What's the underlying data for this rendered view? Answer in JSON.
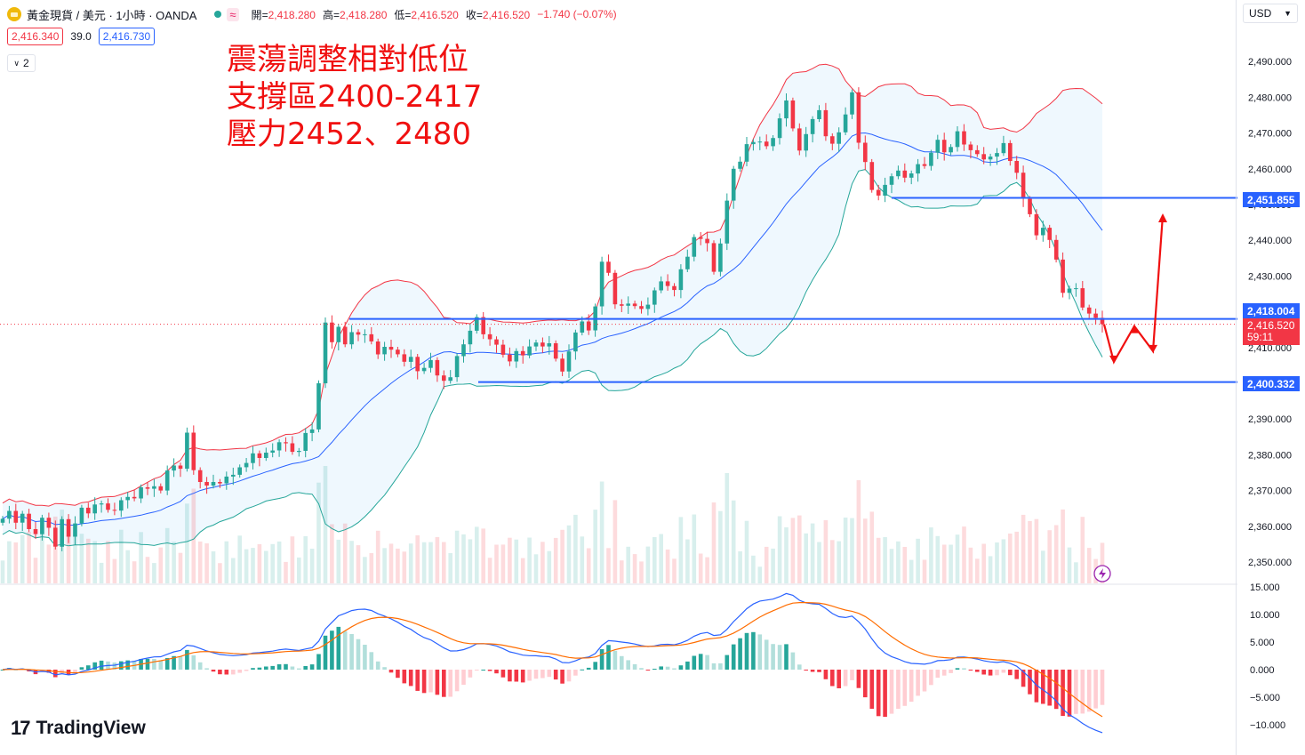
{
  "header": {
    "title": "黃金現貨 / 美元 · 1小時 · OANDA",
    "ohlc": [
      {
        "label": "開",
        "value": "2,418.280"
      },
      {
        "label": "高",
        "value": "2,418.280"
      },
      {
        "label": "低",
        "value": "2,416.520"
      },
      {
        "label": "收",
        "value": "2,416.520"
      }
    ],
    "change": "−1.740 (−0.07%)",
    "sell_price": "2,416.340",
    "spread": "39.0",
    "buy_price": "2,416.730",
    "collapse_label": "2",
    "currency": "USD",
    "wave_icon": "≈"
  },
  "annotation": {
    "lines": [
      "震蕩調整相對低位",
      "支撐區2400-2417",
      "壓力2452、2480"
    ],
    "color": "#f01010"
  },
  "logo": {
    "text": "TradingView"
  },
  "price_tags": {
    "resistance": "2,451.855",
    "near_support": "2,418.004",
    "last_price": "2,416.520",
    "countdown": "59:11",
    "support": "2,400.332"
  },
  "colors": {
    "up": "#26a69a",
    "down": "#f23645",
    "level_line": "#2962ff",
    "bb_upper": "#f23645",
    "bb_mid": "#2962ff",
    "bb_lower": "#26a69a",
    "macd": "#2962ff",
    "signal": "#ff6d00"
  },
  "chart_data": [
    {
      "type": "candlestick",
      "title": "",
      "y_ticks": [
        "2,350.000",
        "2,360.000",
        "2,370.000",
        "2,380.000",
        "2,390.000",
        "2,400.000",
        "2,410.000",
        "2,420.000",
        "2,430.000",
        "2,440.000",
        "2,450.000",
        "2,460.000",
        "2,470.000",
        "2,480.000",
        "2,490.000"
      ],
      "ylim": [
        2343,
        2497
      ],
      "horizontal_levels": [
        2451.855,
        2418.004,
        2400.332
      ],
      "forecast_path": [
        2416.5,
        2406,
        2416,
        2409,
        2447
      ],
      "close": [
        2362.1,
        2364.3,
        2361.0,
        2363.5,
        2359.2,
        2357.8,
        2362.4,
        2359.6,
        2354.3,
        2362.0,
        2357.1,
        2360.8,
        2365.2,
        2363.6,
        2366.1,
        2366.4,
        2364.6,
        2364.4,
        2367.3,
        2368.2,
        2367.8,
        2370.9,
        2370.5,
        2371.2,
        2370.0,
        2375.6,
        2377.0,
        2376.1,
        2386.2,
        2375.7,
        2372.4,
        2371.4,
        2372.4,
        2372.0,
        2373.9,
        2374.4,
        2376.5,
        2377.7,
        2380.4,
        2379.1,
        2380.6,
        2381.2,
        2383.5,
        2383.2,
        2380.8,
        2381.1,
        2386.1,
        2387.1,
        2400.0,
        2417.0,
        2411.5,
        2415.8,
        2410.9,
        2414.3,
        2413.6,
        2413.7,
        2411.7,
        2408.1,
        2410.2,
        2409.4,
        2408.1,
        2406.0,
        2407.4,
        2403.4,
        2404.3,
        2406.5,
        2402.2,
        2400.7,
        2401.7,
        2407.6,
        2410.9,
        2414.7,
        2418.5,
        2413.7,
        2412.3,
        2410.8,
        2408.0,
        2406.1,
        2409.0,
        2407.8,
        2410.3,
        2411.4,
        2410.3,
        2411.2,
        2406.9,
        2403.3,
        2408.9,
        2414.2,
        2417.3,
        2414.8,
        2421.5,
        2434.0,
        2430.9,
        2422.1,
        2421.7,
        2422.3,
        2421.6,
        2420.8,
        2422.0,
        2426.0,
        2428.5,
        2427.2,
        2426.1,
        2431.9,
        2435.4,
        2440.9,
        2440.4,
        2439.2,
        2431.2,
        2439.1,
        2451.1,
        2460.0,
        2462.0,
        2466.9,
        2467.5,
        2467.6,
        2466.3,
        2468.6,
        2474.1,
        2479.1,
        2471.3,
        2465.1,
        2469.7,
        2473.9,
        2476.4,
        2469.1,
        2467.0,
        2470.2,
        2475.2,
        2481.4,
        2467.3,
        2461.9,
        2454.1,
        2452.5,
        2455.5,
        2457.9,
        2459.5,
        2457.5,
        2458.7,
        2461.3,
        2460.8,
        2464.5,
        2468.1,
        2464.6,
        2466.1,
        2470.5,
        2466.8,
        2465.2,
        2464.1,
        2462.6,
        2463.4,
        2464.4,
        2467.2,
        2462.2,
        2458.9,
        2451.6,
        2447.3,
        2441.4,
        2443.5,
        2440.1,
        2434.6,
        2425.3,
        2426.5,
        2426.6,
        2421.2,
        2419.5,
        2418.3,
        2416.5
      ],
      "open": [
        2361.0,
        2362.1,
        2364.3,
        2361.0,
        2363.5,
        2359.2,
        2357.8,
        2362.4,
        2359.6,
        2354.3,
        2362.0,
        2357.1,
        2360.8,
        2365.2,
        2363.6,
        2366.1,
        2366.4,
        2364.6,
        2364.4,
        2367.3,
        2368.2,
        2367.8,
        2370.9,
        2370.5,
        2371.2,
        2370.0,
        2375.6,
        2377.0,
        2376.1,
        2386.2,
        2375.7,
        2372.4,
        2371.4,
        2372.4,
        2372.0,
        2373.9,
        2374.4,
        2376.5,
        2377.7,
        2380.4,
        2379.1,
        2380.6,
        2381.2,
        2383.5,
        2383.2,
        2380.8,
        2381.1,
        2386.1,
        2387.1,
        2400.0,
        2417.0,
        2411.5,
        2415.8,
        2410.9,
        2414.3,
        2413.6,
        2413.7,
        2411.7,
        2408.1,
        2410.2,
        2409.4,
        2408.1,
        2406.0,
        2407.4,
        2403.4,
        2404.3,
        2406.5,
        2402.2,
        2400.7,
        2401.7,
        2407.6,
        2410.9,
        2414.7,
        2418.5,
        2413.7,
        2412.3,
        2410.8,
        2408.0,
        2406.1,
        2409.0,
        2407.8,
        2410.3,
        2411.4,
        2410.3,
        2411.2,
        2406.9,
        2403.3,
        2408.9,
        2414.2,
        2417.3,
        2414.8,
        2421.5,
        2434.0,
        2430.9,
        2422.1,
        2421.7,
        2422.3,
        2421.6,
        2420.8,
        2422.0,
        2426.0,
        2428.5,
        2427.2,
        2426.1,
        2431.9,
        2435.4,
        2440.9,
        2440.4,
        2439.2,
        2431.2,
        2439.1,
        2451.1,
        2460.0,
        2462.0,
        2466.9,
        2467.5,
        2467.6,
        2466.3,
        2468.6,
        2474.1,
        2479.1,
        2471.3,
        2465.1,
        2469.7,
        2473.9,
        2476.4,
        2469.1,
        2467.0,
        2470.2,
        2475.2,
        2481.4,
        2467.3,
        2461.9,
        2454.1,
        2452.5,
        2455.5,
        2457.9,
        2459.5,
        2457.5,
        2458.7,
        2461.3,
        2460.8,
        2464.5,
        2468.1,
        2464.6,
        2466.1,
        2470.5,
        2466.8,
        2465.2,
        2464.1,
        2462.6,
        2463.4,
        2464.4,
        2467.2,
        2462.2,
        2458.9,
        2451.6,
        2447.3,
        2441.4,
        2443.5,
        2440.1,
        2434.6,
        2425.3,
        2426.5,
        2426.6,
        2421.2,
        2419.5,
        2418.3
      ],
      "macd_ticks": [
        "15.000",
        "10.000",
        "5.000",
        "0.000",
        "−5.000",
        "−10.000"
      ]
    }
  ]
}
